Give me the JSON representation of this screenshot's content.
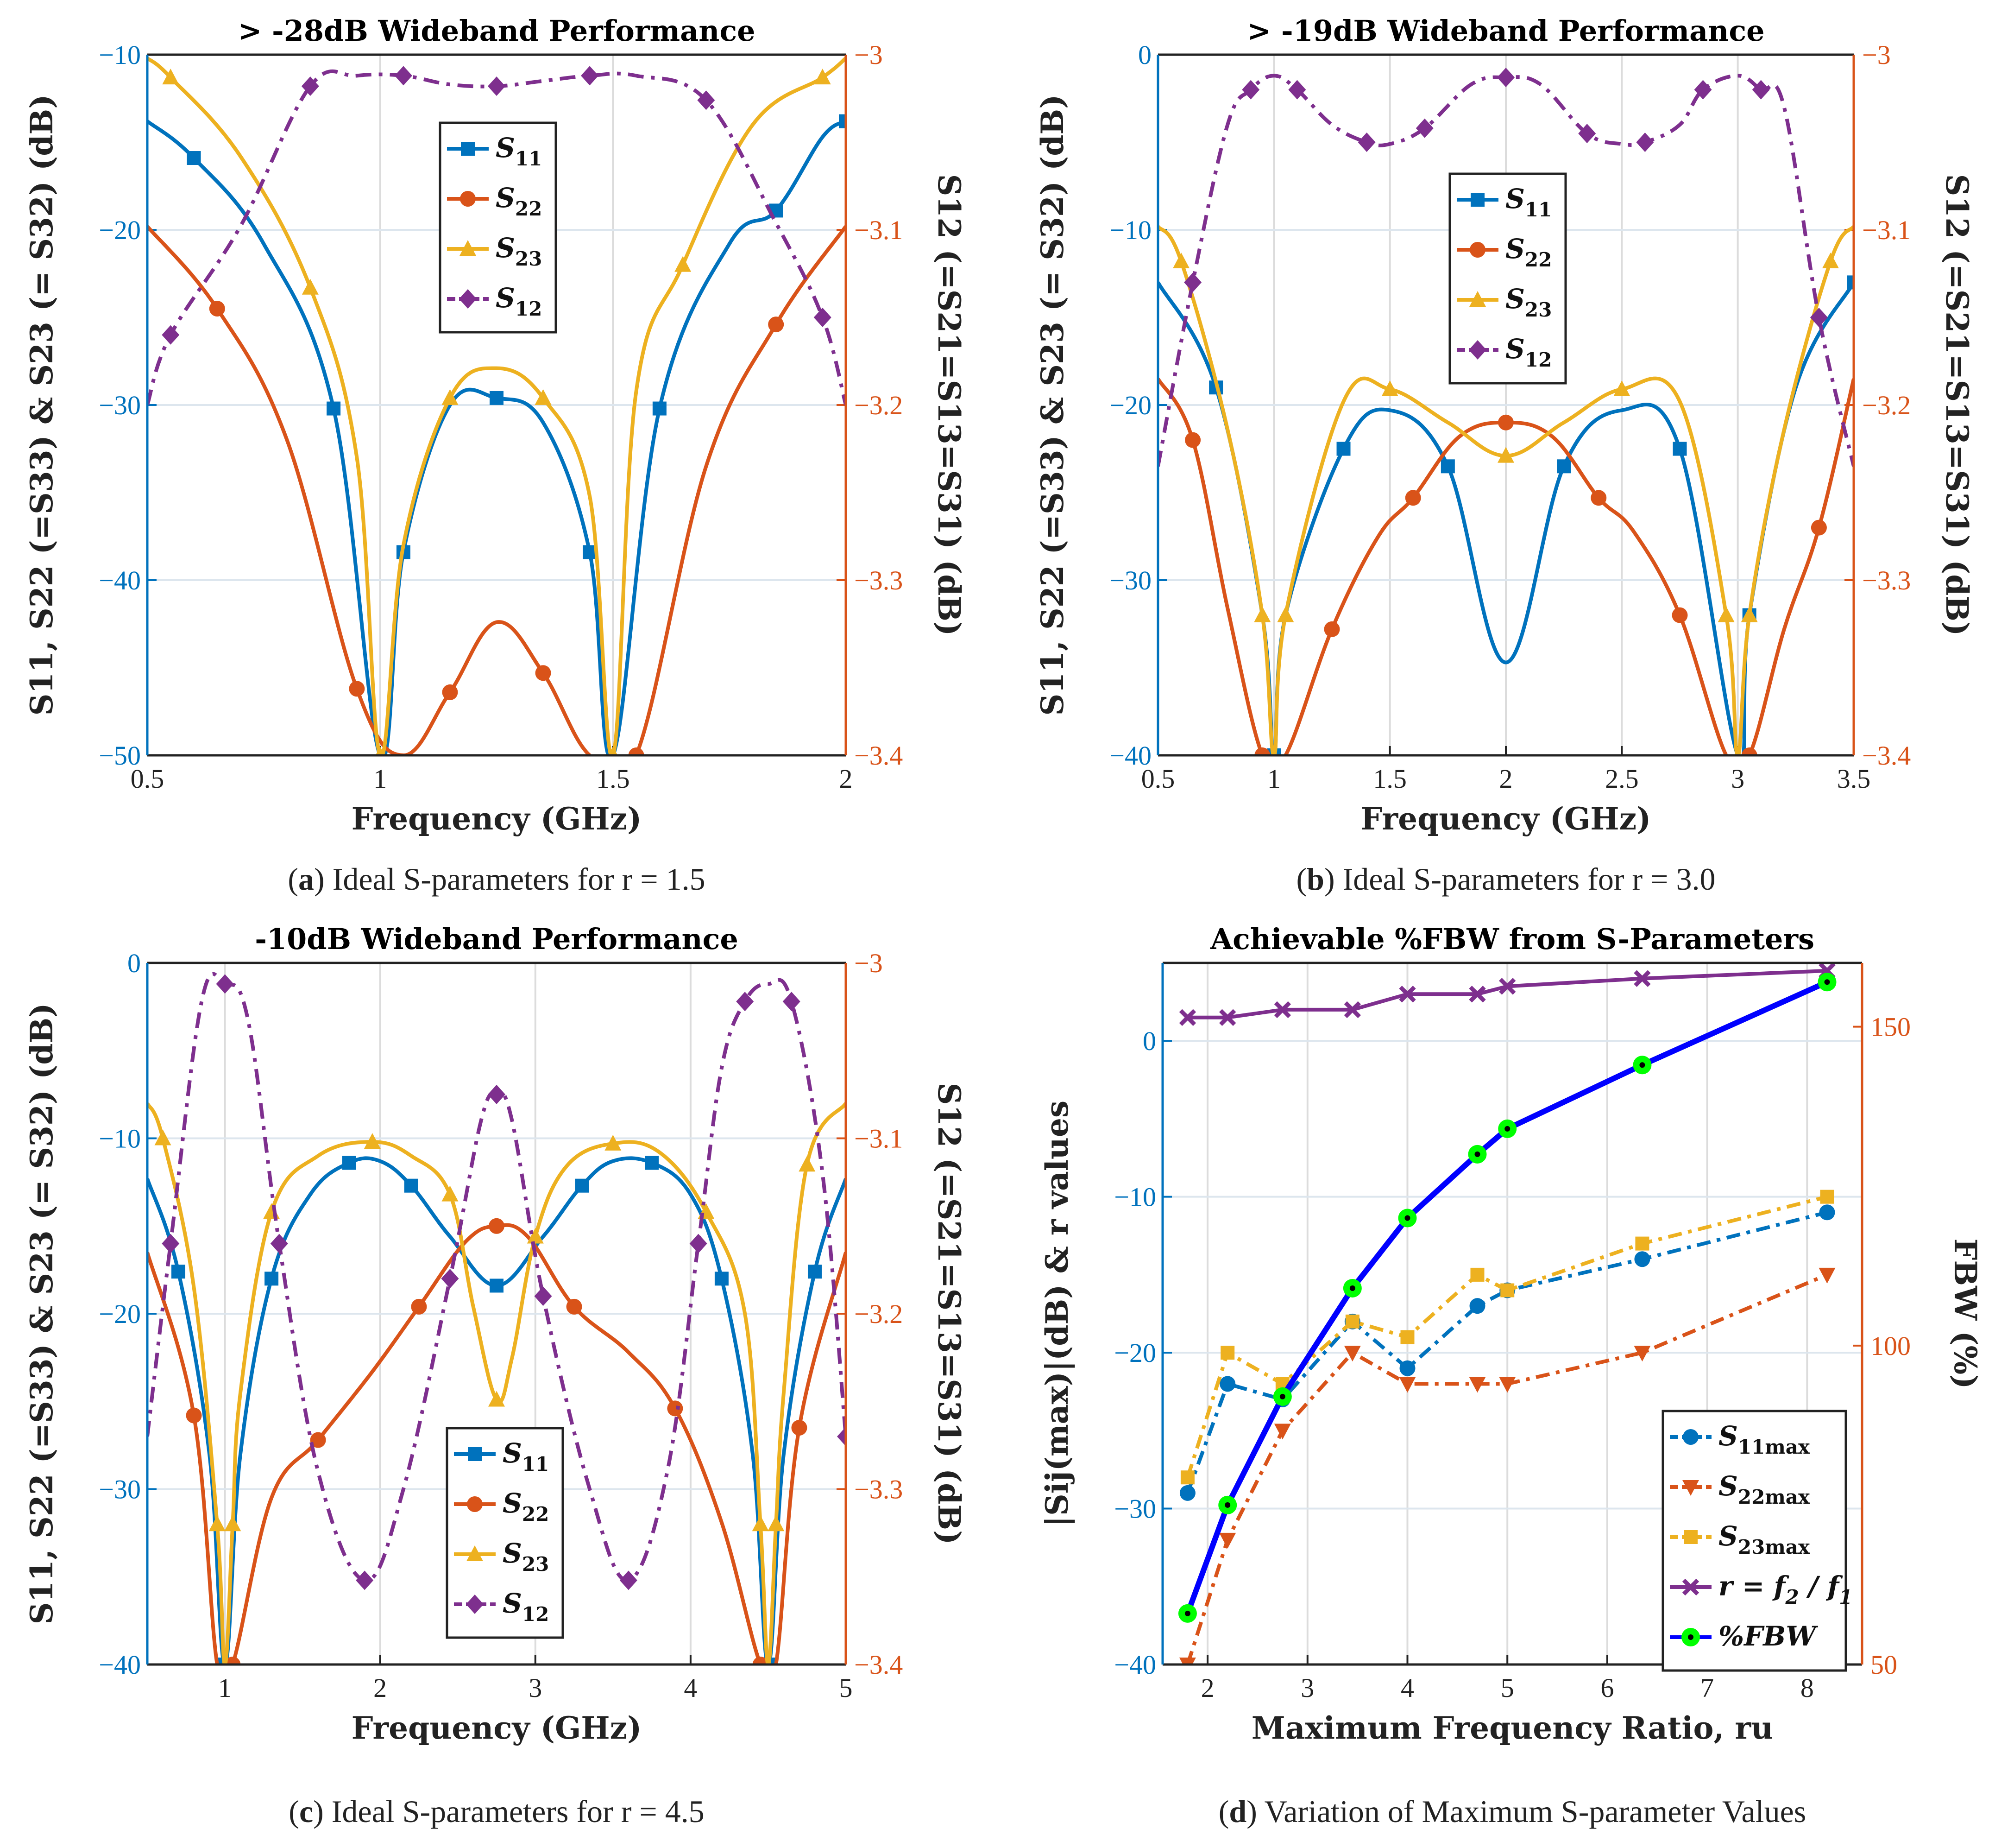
{
  "colors": {
    "blue": "#0072BD",
    "orange": "#D95319",
    "yellow": "#EDB120",
    "purple": "#7E2F8E",
    "fbw": "#0000FF",
    "grid": "#dde6ee",
    "green": "#00FF00"
  },
  "chart_data": [
    {
      "id": "a",
      "type": "line",
      "title": "> -28dB Wideband Performance",
      "xlabel": "Frequency (GHz)",
      "ylabel": "S11, S22 (=S33) & S23 (= S32) (dB)",
      "y2label": "S12 (=S21=S13=S31) (dB)",
      "caption_letter": "a",
      "caption_rest": "Ideal S-parameters for r = 1.5",
      "xlim": [
        0.5,
        2.0
      ],
      "ylim": [
        -50,
        -10
      ],
      "y2lim": [
        -3.4,
        -3.0
      ],
      "xticks": [
        "0.5",
        "1",
        "1.5",
        "2"
      ],
      "yticks": [
        "−50",
        "−40",
        "−30",
        "−20",
        "−10"
      ],
      "y2ticks": [
        "−3.4",
        "−3.3",
        "−3.2",
        "−3.1",
        "−3"
      ],
      "legend": [
        "S11",
        "S22",
        "S23",
        "S12"
      ],
      "series": [
        {
          "name": "S11",
          "x": [
            0.5,
            0.6,
            0.75,
            0.9,
            1.0,
            1.05,
            1.15,
            1.25,
            1.35,
            1.45,
            1.5,
            1.6,
            1.75,
            1.85,
            1.95,
            2.0
          ],
          "y": [
            -13.8,
            -15.9,
            -20.8,
            -30.2,
            -50,
            -38.4,
            -30.0,
            -29.6,
            -31.0,
            -38.4,
            -50,
            -30.2,
            -20.8,
            -18.9,
            -14.7,
            -13.8
          ]
        },
        {
          "name": "S22",
          "x": [
            0.5,
            0.65,
            0.8,
            0.95,
            1.05,
            1.15,
            1.25,
            1.35,
            1.45,
            1.55,
            1.7,
            1.85,
            2.0
          ],
          "y": [
            -19.8,
            -24.5,
            -32.0,
            -46.2,
            -50,
            -46.4,
            -42.4,
            -45.3,
            -50,
            -50,
            -33.5,
            -25.4,
            -19.8
          ],
          "clip": true
        },
        {
          "name": "S23",
          "x": [
            0.5,
            0.55,
            0.7,
            0.85,
            0.95,
            1.0,
            1.05,
            1.15,
            1.25,
            1.35,
            1.45,
            1.5,
            1.55,
            1.65,
            1.8,
            1.95,
            2.0
          ],
          "y": [
            -10.2,
            -11.3,
            -15.8,
            -23.3,
            -33.0,
            -50,
            -38.0,
            -29.6,
            -27.9,
            -29.6,
            -35.2,
            -50,
            -29.2,
            -22.0,
            -14.0,
            -11.3,
            -10.2
          ]
        },
        {
          "name": "S12",
          "axis": "right",
          "x": [
            0.5,
            0.55,
            0.7,
            0.85,
            0.95,
            1.05,
            1.15,
            1.25,
            1.35,
            1.45,
            1.55,
            1.7,
            1.85,
            1.95,
            2.0
          ],
          "y": [
            -3.2,
            -3.16,
            -3.098,
            -3.018,
            -3.012,
            -3.012,
            -3.017,
            -3.018,
            -3.015,
            -3.012,
            -3.012,
            -3.026,
            -3.096,
            -3.15,
            -3.2
          ]
        }
      ]
    },
    {
      "id": "b",
      "type": "line",
      "title": "> -19dB Wideband Performance",
      "xlabel": "Frequency (GHz)",
      "ylabel": "S11, S22 (=S33) & S23 (= S32) (dB)",
      "y2label": "S12 (=S21=S13=S31) (dB)",
      "caption_letter": "b",
      "caption_rest": "Ideal S-parameters for r = 3.0",
      "xlim": [
        0.5,
        3.5
      ],
      "ylim": [
        -40,
        0
      ],
      "y2lim": [
        -3.4,
        -3.0
      ],
      "xticks": [
        "0.5",
        "1",
        "1.5",
        "2",
        "2.5",
        "3",
        "3.5"
      ],
      "yticks": [
        "−40",
        "−30",
        "−20",
        "−10",
        "0"
      ],
      "y2ticks": [
        "−3.4",
        "−3.3",
        "−3.2",
        "−3.1",
        "−3"
      ],
      "legend": [
        "S11",
        "S22",
        "S23",
        "S12"
      ],
      "series": [
        {
          "name": "S11",
          "x": [
            0.5,
            0.75,
            0.95,
            1.0,
            1.05,
            1.3,
            1.5,
            1.75,
            2.0,
            2.25,
            2.5,
            2.75,
            3.0,
            3.05,
            3.25,
            3.5
          ],
          "y": [
            -13,
            -19,
            -32,
            -40,
            -32,
            -22.5,
            -20.3,
            -23.5,
            -34.7,
            -23.5,
            -20.3,
            -22.5,
            -40,
            -32,
            -19,
            -13
          ]
        },
        {
          "name": "S22",
          "x": [
            0.5,
            0.65,
            0.8,
            0.95,
            1.05,
            1.25,
            1.45,
            1.6,
            1.8,
            2.0,
            2.2,
            2.4,
            2.55,
            2.75,
            2.95,
            3.05,
            3.2,
            3.35,
            3.5
          ],
          "y": [
            -18.5,
            -22.0,
            -31.6,
            -40,
            -40,
            -32.8,
            -27.5,
            -25.3,
            -21.8,
            -21.0,
            -21.8,
            -25.3,
            -27.2,
            -32.0,
            -40,
            -40,
            -32.8,
            -27.0,
            -18.5
          ],
          "clip": true
        },
        {
          "name": "S23",
          "x": [
            0.5,
            0.6,
            0.8,
            0.95,
            1.0,
            1.05,
            1.3,
            1.5,
            1.75,
            2.0,
            2.25,
            2.5,
            2.75,
            2.95,
            3.0,
            3.05,
            3.2,
            3.4,
            3.5
          ],
          "y": [
            -9.8,
            -11.8,
            -21.4,
            -32,
            -40,
            -32,
            -19.8,
            -19.1,
            -21.0,
            -22.9,
            -21.0,
            -19.1,
            -19.8,
            -32,
            -40,
            -32,
            -21.4,
            -11.8,
            -9.8
          ]
        },
        {
          "name": "S12",
          "axis": "right",
          "x": [
            0.5,
            0.65,
            0.8,
            0.9,
            1.0,
            1.1,
            1.25,
            1.4,
            1.5,
            1.65,
            1.85,
            2.0,
            2.15,
            2.35,
            2.5,
            2.6,
            2.75,
            2.85,
            3.0,
            3.1,
            3.2,
            3.35,
            3.5
          ],
          "y": [
            -3.235,
            -3.13,
            -3.04,
            -3.02,
            -3.012,
            -3.02,
            -3.04,
            -3.05,
            -3.051,
            -3.042,
            -3.017,
            -3.013,
            -3.017,
            -3.045,
            -3.051,
            -3.05,
            -3.04,
            -3.02,
            -3.012,
            -3.02,
            -3.03,
            -3.15,
            -3.235
          ]
        }
      ]
    },
    {
      "id": "c",
      "type": "line",
      "title": "-10dB Wideband Performance",
      "xlabel": "Frequency (GHz)",
      "ylabel": "S11, S22 (=S33) & S23 (= S32) (dB)",
      "y2label": "S12 (=S21=S13=S31) (dB)",
      "caption_letter": "c",
      "caption_rest": "Ideal S-parameters for r = 4.5",
      "xlim": [
        0.5,
        5.0
      ],
      "ylim": [
        -40,
        0
      ],
      "y2lim": [
        -3.4,
        -3.0
      ],
      "xticks": [
        "1",
        "2",
        "3",
        "4",
        "5"
      ],
      "yticks": [
        "−40",
        "−30",
        "−20",
        "−10",
        "0"
      ],
      "y2ticks": [
        "−3.4",
        "−3.3",
        "−3.2",
        "−3.1",
        "−3"
      ],
      "legend": [
        "S11",
        "S22",
        "S23",
        "S12"
      ],
      "series": [
        {
          "name": "S11",
          "x": [
            0.5,
            0.7,
            0.9,
            1.0,
            1.1,
            1.3,
            1.55,
            1.8,
            2.0,
            2.2,
            2.45,
            2.75,
            3.05,
            3.3,
            3.5,
            3.75,
            4.0,
            4.2,
            4.4,
            4.5,
            4.6,
            4.8,
            5.0
          ],
          "y": [
            -12.3,
            -17.6,
            -28,
            -40,
            -28,
            -18.0,
            -13.2,
            -11.4,
            -11.3,
            -12.7,
            -15.6,
            -18.4,
            -15.6,
            -12.7,
            -11.3,
            -11.4,
            -13.2,
            -18.0,
            -28,
            -40,
            -28,
            -17.6,
            -12.3
          ]
        },
        {
          "name": "S22",
          "x": [
            0.5,
            0.8,
            0.95,
            1.05,
            1.3,
            1.6,
            1.95,
            2.25,
            2.55,
            2.75,
            2.95,
            3.25,
            3.6,
            3.9,
            4.2,
            4.45,
            4.55,
            4.7,
            5.0
          ],
          "y": [
            -16.5,
            -25.8,
            -40,
            -40,
            -30.5,
            -27.2,
            -23.3,
            -19.6,
            -15.9,
            -15.0,
            -15.6,
            -19.6,
            -22.2,
            -25.4,
            -31.9,
            -40,
            -40,
            -26.5,
            -16.5
          ],
          "clip": true
        },
        {
          "name": "S23",
          "x": [
            0.5,
            0.6,
            0.8,
            0.95,
            1.0,
            1.05,
            1.1,
            1.3,
            1.6,
            1.95,
            2.2,
            2.45,
            2.6,
            2.75,
            2.85,
            3.0,
            3.2,
            3.5,
            3.8,
            4.1,
            4.35,
            4.45,
            4.5,
            4.55,
            4.6,
            4.75,
            5.0
          ],
          "y": [
            -8.0,
            -10.0,
            -18.5,
            -32,
            -40,
            -32,
            -24.5,
            -14.2,
            -11.0,
            -10.2,
            -11.0,
            -13.2,
            -19.6,
            -24.9,
            -22.5,
            -15.6,
            -11.6,
            -10.3,
            -10.8,
            -14.2,
            -20,
            -32,
            -40,
            -32,
            -24.5,
            -11.5,
            -8.0
          ]
        },
        {
          "name": "S12",
          "axis": "right",
          "x": [
            0.5,
            0.65,
            0.85,
            1.0,
            1.15,
            1.35,
            1.6,
            1.9,
            2.15,
            2.45,
            2.65,
            2.75,
            2.85,
            3.05,
            3.35,
            3.6,
            3.85,
            4.05,
            4.2,
            4.35,
            4.5,
            4.65,
            4.85,
            5.0
          ],
          "y": [
            -3.27,
            -3.16,
            -3.022,
            -3.012,
            -3.033,
            -3.16,
            -3.29,
            -3.352,
            -3.3,
            -3.18,
            -3.09,
            -3.075,
            -3.09,
            -3.19,
            -3.3,
            -3.352,
            -3.29,
            -3.16,
            -3.06,
            -3.022,
            -3.012,
            -3.022,
            -3.12,
            -3.27
          ]
        }
      ]
    },
    {
      "id": "d",
      "type": "line",
      "title": "Achievable %FBW from S-Parameters",
      "xlabel": "Maximum Frequency Ratio, ru",
      "ylabel": "|Sij(max)|(dB) & r values",
      "y2label": "FBW (%)",
      "caption_letter": "d",
      "caption_rest": "Variation of Maximum S-parameter Values",
      "xlim": [
        1.55,
        8.55
      ],
      "ylim": [
        -40,
        5
      ],
      "y2lim": [
        50,
        160
      ],
      "xticks": [
        "2",
        "3",
        "4",
        "5",
        "6",
        "7",
        "8"
      ],
      "yticks": [
        "−40",
        "−30",
        "−20",
        "−10",
        "0"
      ],
      "y2ticks": [
        "50",
        "100",
        "150"
      ],
      "legend": [
        "S11max",
        "S22max",
        "S23max",
        "r = f2 / f1",
        "%FBW"
      ],
      "series": [
        {
          "name": "S11max",
          "x": [
            1.8,
            2.2,
            2.75,
            3.45,
            4.0,
            4.7,
            5.0,
            6.35,
            8.2
          ],
          "y": [
            -29,
            -22,
            -23,
            -18,
            -21,
            -17,
            -16,
            -14,
            -11
          ]
        },
        {
          "name": "S22max",
          "x": [
            1.8,
            2.2,
            2.75,
            3.45,
            4.0,
            4.7,
            5.0,
            6.35,
            8.2
          ],
          "y": [
            -40,
            -32,
            -25,
            -20,
            -22,
            -22,
            -22,
            -20,
            -15
          ]
        },
        {
          "name": "S23max",
          "x": [
            1.8,
            2.2,
            2.75,
            3.45,
            4.0,
            4.7,
            5.0,
            6.35,
            8.2
          ],
          "y": [
            -28,
            -20,
            -22,
            -18,
            -19,
            -15,
            -16,
            -13,
            -10
          ]
        },
        {
          "name": "r = f2 / f1",
          "x": [
            1.8,
            2.2,
            2.75,
            3.45,
            4.0,
            4.7,
            5.0,
            6.35,
            8.2
          ],
          "y": [
            1.5,
            1.5,
            2.0,
            2.0,
            3.0,
            3.0,
            3.5,
            4.0,
            4.5
          ]
        },
        {
          "name": "%FBW",
          "axis": "right",
          "x": [
            1.8,
            2.2,
            2.75,
            3.45,
            4.0,
            4.7,
            5.0,
            6.35,
            8.2
          ],
          "y": [
            58,
            75,
            92,
            109,
            120,
            130,
            134,
            144,
            157
          ]
        }
      ]
    }
  ]
}
